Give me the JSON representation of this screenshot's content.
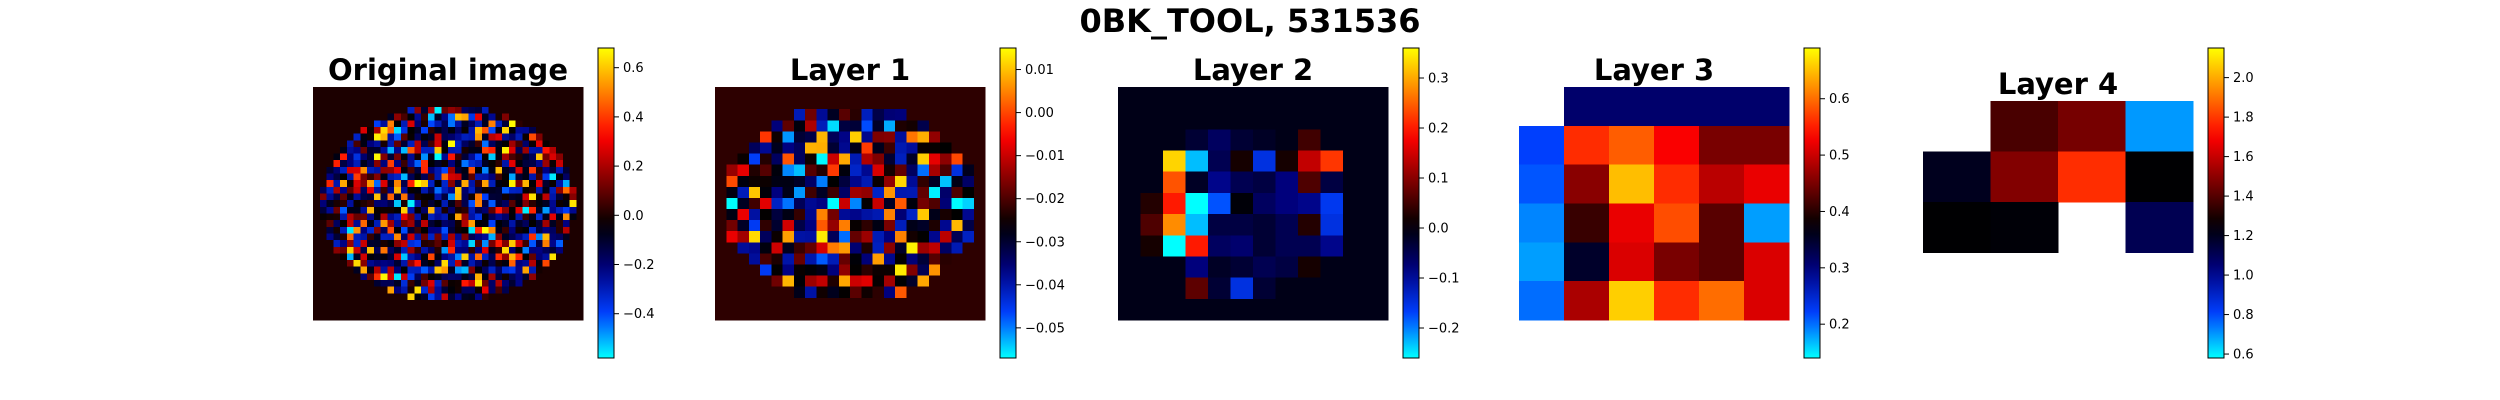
{
  "figure_title": "0BK_TOOL, 531536",
  "colormap_stops": [
    "#00ffff",
    "#0040ff",
    "#000080",
    "#000000",
    "#800000",
    "#ff0000",
    "#ff8000",
    "#ffff00"
  ],
  "chart_data": [
    {
      "type": "heatmap",
      "title": "Original image",
      "content": "brain-shaped noisy activation map on dark background",
      "grid": [
        40,
        35
      ],
      "background_value": 0.0,
      "vmin": -0.58,
      "vmax": 0.68,
      "colorbar_ticks": [
        -0.4,
        -0.2,
        0.0,
        0.2,
        0.4,
        0.6
      ],
      "colorbar_tick_labels": [
        "−0.4",
        "−0.2",
        "0.0",
        "0.2",
        "0.4",
        "0.6"
      ]
    },
    {
      "type": "heatmap",
      "title": "Layer 1",
      "content": "brain-shaped activation map on dark red background",
      "grid": [
        24,
        21
      ],
      "background_value": -0.0225,
      "vmin": -0.057,
      "vmax": 0.015,
      "colorbar_ticks": [
        -0.05,
        -0.04,
        -0.03,
        -0.02,
        -0.01,
        0.0,
        0.01
      ],
      "colorbar_tick_labels": [
        "−0.05",
        "−0.04",
        "−0.03",
        "−0.02",
        "−0.01",
        "0.00",
        "0.01"
      ]
    },
    {
      "type": "heatmap",
      "title": "Layer 2",
      "grid": [
        12,
        11
      ],
      "background_value": -0.01,
      "vmin": -0.26,
      "vmax": 0.36,
      "values": [
        [
          -0.01,
          -0.01,
          -0.01,
          -0.01,
          -0.01,
          -0.01,
          -0.01,
          -0.01,
          -0.01,
          -0.01,
          -0.01,
          -0.01
        ],
        [
          -0.01,
          -0.01,
          -0.01,
          -0.01,
          -0.01,
          -0.01,
          -0.01,
          -0.01,
          -0.01,
          -0.01,
          -0.01,
          -0.01
        ],
        [
          -0.01,
          -0.01,
          -0.01,
          -0.03,
          -0.06,
          -0.03,
          -0.02,
          -0.01,
          0.05,
          -0.01,
          -0.01,
          -0.01
        ],
        [
          -0.01,
          -0.01,
          0.33,
          -0.23,
          -0.05,
          0.02,
          -0.15,
          0.02,
          0.14,
          0.22,
          -0.01,
          -0.01
        ],
        [
          -0.01,
          -0.01,
          0.24,
          -0.02,
          -0.09,
          -0.05,
          -0.04,
          -0.08,
          0.06,
          -0.04,
          -0.01,
          -0.01
        ],
        [
          -0.01,
          0.03,
          0.2,
          -0.28,
          -0.18,
          0.0,
          -0.06,
          -0.08,
          -0.09,
          -0.16,
          -0.01,
          -0.01
        ],
        [
          -0.01,
          0.06,
          0.28,
          -0.23,
          -0.04,
          -0.04,
          -0.03,
          -0.05,
          0.03,
          -0.15,
          -0.01,
          -0.01
        ],
        [
          -0.01,
          0.02,
          -0.28,
          0.2,
          -0.06,
          -0.07,
          -0.03,
          -0.05,
          -0.05,
          -0.09,
          -0.01,
          -0.01
        ],
        [
          -0.01,
          -0.01,
          -0.01,
          -0.08,
          -0.02,
          -0.03,
          -0.05,
          -0.04,
          0.02,
          -0.01,
          -0.01,
          -0.01
        ],
        [
          -0.01,
          -0.01,
          -0.01,
          0.07,
          -0.03,
          -0.15,
          -0.03,
          -0.01,
          -0.01,
          -0.01,
          -0.01,
          -0.01
        ],
        [
          -0.01,
          -0.01,
          -0.01,
          -0.01,
          -0.01,
          -0.01,
          -0.01,
          -0.01,
          -0.01,
          -0.01,
          -0.01,
          -0.01
        ]
      ],
      "colorbar_ticks": [
        -0.2,
        -0.1,
        0.0,
        0.1,
        0.2,
        0.3
      ],
      "colorbar_tick_labels": [
        "−0.2",
        "−0.1",
        "0.0",
        "0.1",
        "0.2",
        "0.3"
      ]
    },
    {
      "type": "heatmap",
      "title": "Layer 3",
      "grid": [
        6,
        6
      ],
      "vmin": 0.14,
      "vmax": 0.69,
      "values": [
        [
          null,
          0.31,
          0.31,
          0.31,
          0.31,
          0.31
        ],
        [
          0.22,
          0.56,
          0.59,
          0.53,
          0.45,
          0.45
        ],
        [
          0.21,
          0.46,
          0.65,
          0.56,
          0.49,
          0.52
        ],
        [
          0.19,
          0.41,
          0.52,
          0.58,
          0.43,
          0.18
        ],
        [
          0.18,
          0.35,
          0.51,
          0.45,
          0.43,
          0.51
        ],
        [
          0.2,
          0.48,
          0.66,
          0.56,
          0.6,
          0.51
        ]
      ],
      "colorbar_ticks": [
        0.2,
        0.3,
        0.4,
        0.5,
        0.6
      ],
      "colorbar_tick_labels": [
        "0.2",
        "0.3",
        "0.4",
        "0.5",
        "0.6"
      ]
    },
    {
      "type": "heatmap",
      "title": "Layer 4",
      "grid": [
        4,
        4
      ],
      "vmin": 0.58,
      "vmax": 2.15,
      "values": [
        [
          null,
          1.38,
          1.46,
          0.7
        ],
        [
          1.2,
          1.48,
          1.78,
          1.25
        ],
        [
          1.25,
          1.24,
          null,
          1.11
        ],
        [
          null,
          null,
          null,
          null
        ]
      ],
      "colorbar_ticks": [
        0.6,
        0.8,
        1.0,
        1.2,
        1.4,
        1.6,
        1.8,
        2.0
      ],
      "colorbar_tick_labels": [
        "0.6",
        "0.8",
        "1.0",
        "1.2",
        "1.4",
        "1.6",
        "1.8",
        "2.0"
      ]
    }
  ]
}
